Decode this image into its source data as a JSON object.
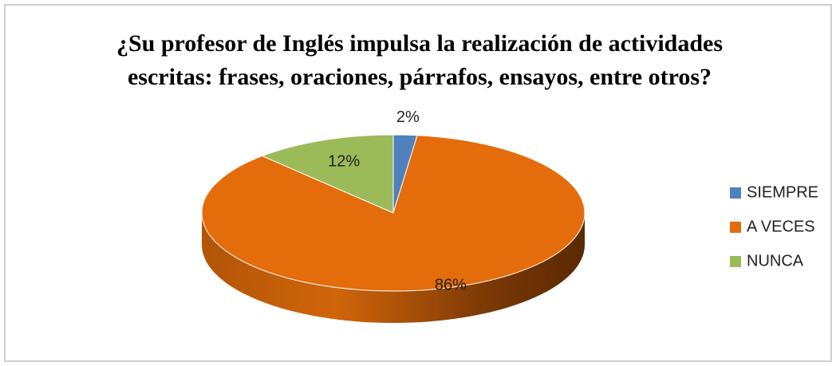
{
  "chart_data": {
    "type": "pie3d",
    "title": [
      "¿Su profesor de Inglés impulsa la realización de actividades",
      "escritas: frases, oraciones, párrafos, ensayos, entre otros?"
    ],
    "categories": [
      "SIEMPRE",
      "A VECES",
      "NUNCA"
    ],
    "values": [
      2,
      86,
      12
    ],
    "value_labels": [
      "2%",
      "86%",
      "12%"
    ],
    "colors": [
      "#4f81bd",
      "#e46c0a",
      "#9bbb59"
    ],
    "legend": "right"
  }
}
